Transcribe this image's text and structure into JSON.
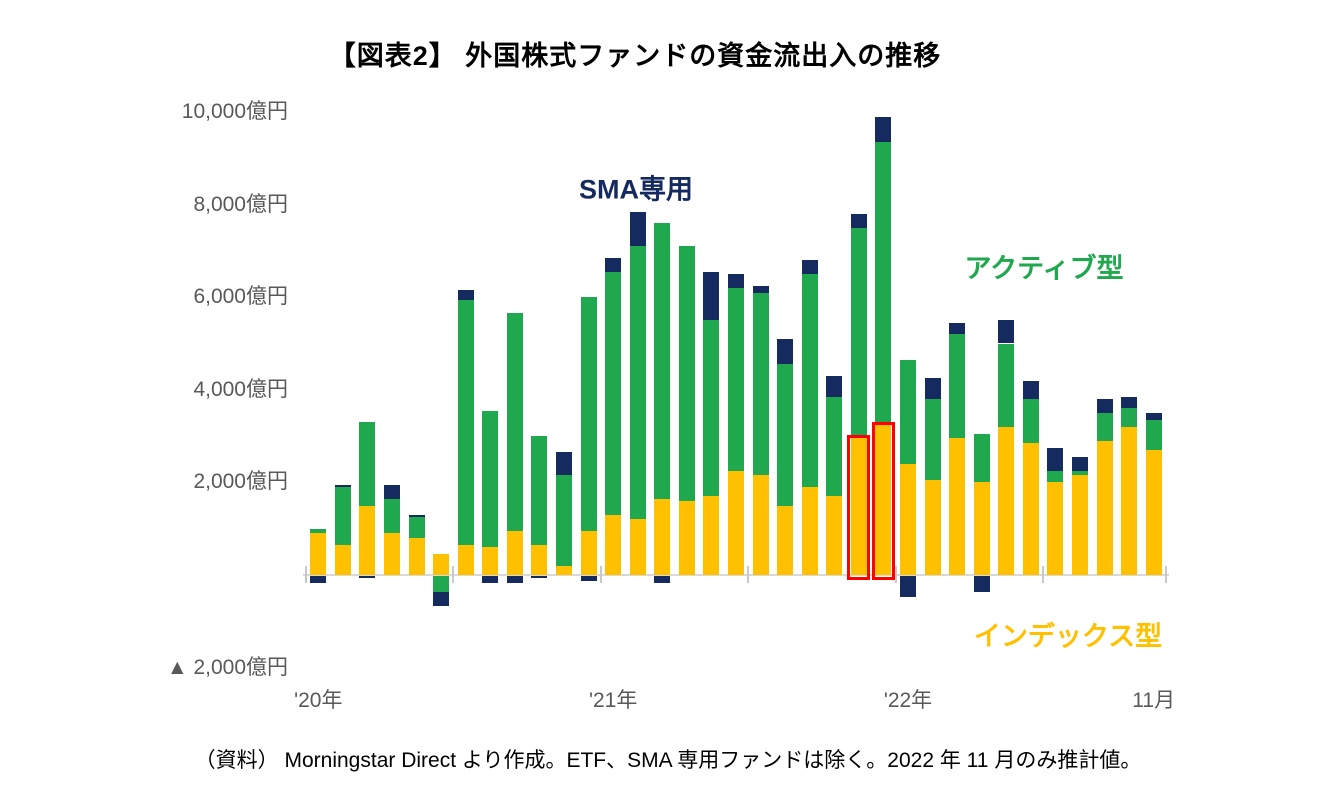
{
  "source_note": "（資料） Morningstar Direct より作成。ETF、SMA 専用ファンドは除く。2022 年 11 月のみ推計値。",
  "chart_data": {
    "type": "bar",
    "stacked": true,
    "title": "【図表2】 外国株式ファンドの資金流出入の推移",
    "unit": "億円",
    "legend_position": "floating-annotations",
    "grid": false,
    "y_axis": {
      "range": [
        -2000,
        10000
      ],
      "ticks": [
        {
          "label": "10,000億円",
          "value": 10000
        },
        {
          "label": "8,000億円",
          "value": 8000
        },
        {
          "label": "6,000億円",
          "value": 6000
        },
        {
          "label": "4,000億円",
          "value": 4000
        },
        {
          "label": "2,000億円",
          "value": 2000
        },
        {
          "label": "▲ 2,000億円",
          "value": -2000
        }
      ]
    },
    "x_axis": {
      "labels": [
        {
          "label": "'20年",
          "month": 0.5
        },
        {
          "label": "'21年",
          "month": 12.5
        },
        {
          "label": "'22年",
          "month": 24.5
        },
        {
          "label": "11月",
          "month": 34.5
        }
      ],
      "tick_boundaries_months": [
        0,
        6,
        12,
        18,
        24,
        30,
        35
      ]
    },
    "series": [
      {
        "key": "index",
        "name": "インデックス型",
        "color": "#FFC000"
      },
      {
        "key": "active",
        "name": "アクティブ型",
        "color": "#1FA84D"
      },
      {
        "key": "sma",
        "name": "SMA専用",
        "color": "#152A5E"
      }
    ],
    "highlight_color": "#FF0000",
    "highlighted_months": [
      "2021-11",
      "2021-12"
    ],
    "months": [
      {
        "month": "2020-01",
        "index": 900,
        "active": 100,
        "sma": -150
      },
      {
        "month": "2020-02",
        "index": 650,
        "active": 1250,
        "sma": 50
      },
      {
        "month": "2020-03",
        "index": 1500,
        "active": 1800,
        "sma": -50
      },
      {
        "month": "2020-04",
        "index": 900,
        "active": 750,
        "sma": 300
      },
      {
        "month": "2020-05",
        "index": 800,
        "active": 450,
        "sma": 50
      },
      {
        "month": "2020-06",
        "index": 450,
        "active": -350,
        "sma": -300
      },
      {
        "month": "2020-07",
        "index": 650,
        "active": 5300,
        "sma": 200
      },
      {
        "month": "2020-08",
        "index": 600,
        "active": 2950,
        "sma": -150
      },
      {
        "month": "2020-09",
        "index": 950,
        "active": 4700,
        "sma": -150
      },
      {
        "month": "2020-10",
        "index": 650,
        "active": 2350,
        "sma": -50
      },
      {
        "month": "2020-11",
        "index": 200,
        "active": 1950,
        "sma": 500
      },
      {
        "month": "2020-12",
        "index": 950,
        "active": 5050,
        "sma": -100
      },
      {
        "month": "2021-01",
        "index": 1300,
        "active": 5250,
        "sma": 300
      },
      {
        "month": "2021-02",
        "index": 1200,
        "active": 5900,
        "sma": 750
      },
      {
        "month": "2021-03",
        "index": 1650,
        "active": 5950,
        "sma": -150
      },
      {
        "month": "2021-04",
        "index": 1600,
        "active": 5500,
        "sma": 0
      },
      {
        "month": "2021-05",
        "index": 1700,
        "active": 3800,
        "sma": 1050
      },
      {
        "month": "2021-06",
        "index": 2250,
        "active": 3950,
        "sma": 300
      },
      {
        "month": "2021-07",
        "index": 2150,
        "active": 3950,
        "sma": 150
      },
      {
        "month": "2021-08",
        "index": 1500,
        "active": 3050,
        "sma": 550
      },
      {
        "month": "2021-09",
        "index": 1900,
        "active": 4600,
        "sma": 300
      },
      {
        "month": "2021-10",
        "index": 1700,
        "active": 2150,
        "sma": 450
      },
      {
        "month": "2021-11",
        "index": 2950,
        "active": 4550,
        "sma": 300
      },
      {
        "month": "2021-12",
        "index": 3250,
        "active": 6100,
        "sma": 550
      },
      {
        "month": "2022-01",
        "index": 2400,
        "active": 2250,
        "sma": -450
      },
      {
        "month": "2022-02",
        "index": 2050,
        "active": 1750,
        "sma": 450
      },
      {
        "month": "2022-03",
        "index": 2950,
        "active": 2250,
        "sma": 250
      },
      {
        "month": "2022-04",
        "index": 2000,
        "active": 1050,
        "sma": -350
      },
      {
        "month": "2022-05",
        "index": 3200,
        "active": 1800,
        "sma": 500
      },
      {
        "month": "2022-06",
        "index": 2850,
        "active": 950,
        "sma": 400
      },
      {
        "month": "2022-07",
        "index": 2000,
        "active": 250,
        "sma": 500
      },
      {
        "month": "2022-08",
        "index": 2150,
        "active": 100,
        "sma": 300
      },
      {
        "month": "2022-09",
        "index": 2900,
        "active": 600,
        "sma": 300
      },
      {
        "month": "2022-10",
        "index": 3200,
        "active": 400,
        "sma": 250
      },
      {
        "month": "2022-11",
        "index": 2700,
        "active": 650,
        "sma": 150
      }
    ]
  }
}
